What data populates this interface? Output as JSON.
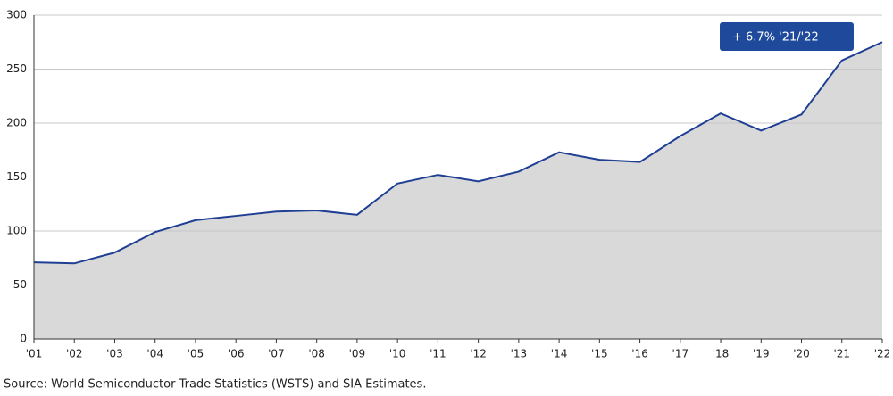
{
  "chart_data": {
    "type": "area",
    "categories": [
      "'01",
      "'02",
      "'03",
      "'04",
      "'05",
      "'06",
      "'07",
      "'08",
      "'09",
      "'10",
      "'11",
      "'12",
      "'13",
      "'14",
      "'15",
      "'16",
      "'17",
      "'18",
      "'19",
      "'20",
      "'21",
      "'22"
    ],
    "values": [
      71,
      70,
      80,
      99,
      110,
      114,
      118,
      119,
      115,
      144,
      152,
      146,
      155,
      173,
      166,
      164,
      188,
      209,
      193,
      208,
      258,
      275
    ],
    "color": "#1f3f94",
    "area_color": "#d9d9d9",
    "ylim": [
      0,
      300
    ],
    "yticks": [
      0,
      50,
      100,
      150,
      200,
      250,
      300
    ],
    "grid": true,
    "annotation": "+ 6.7% '21/'22",
    "source": "Source: World Semiconductor Trade Statistics (WSTS) and SIA Estimates."
  }
}
